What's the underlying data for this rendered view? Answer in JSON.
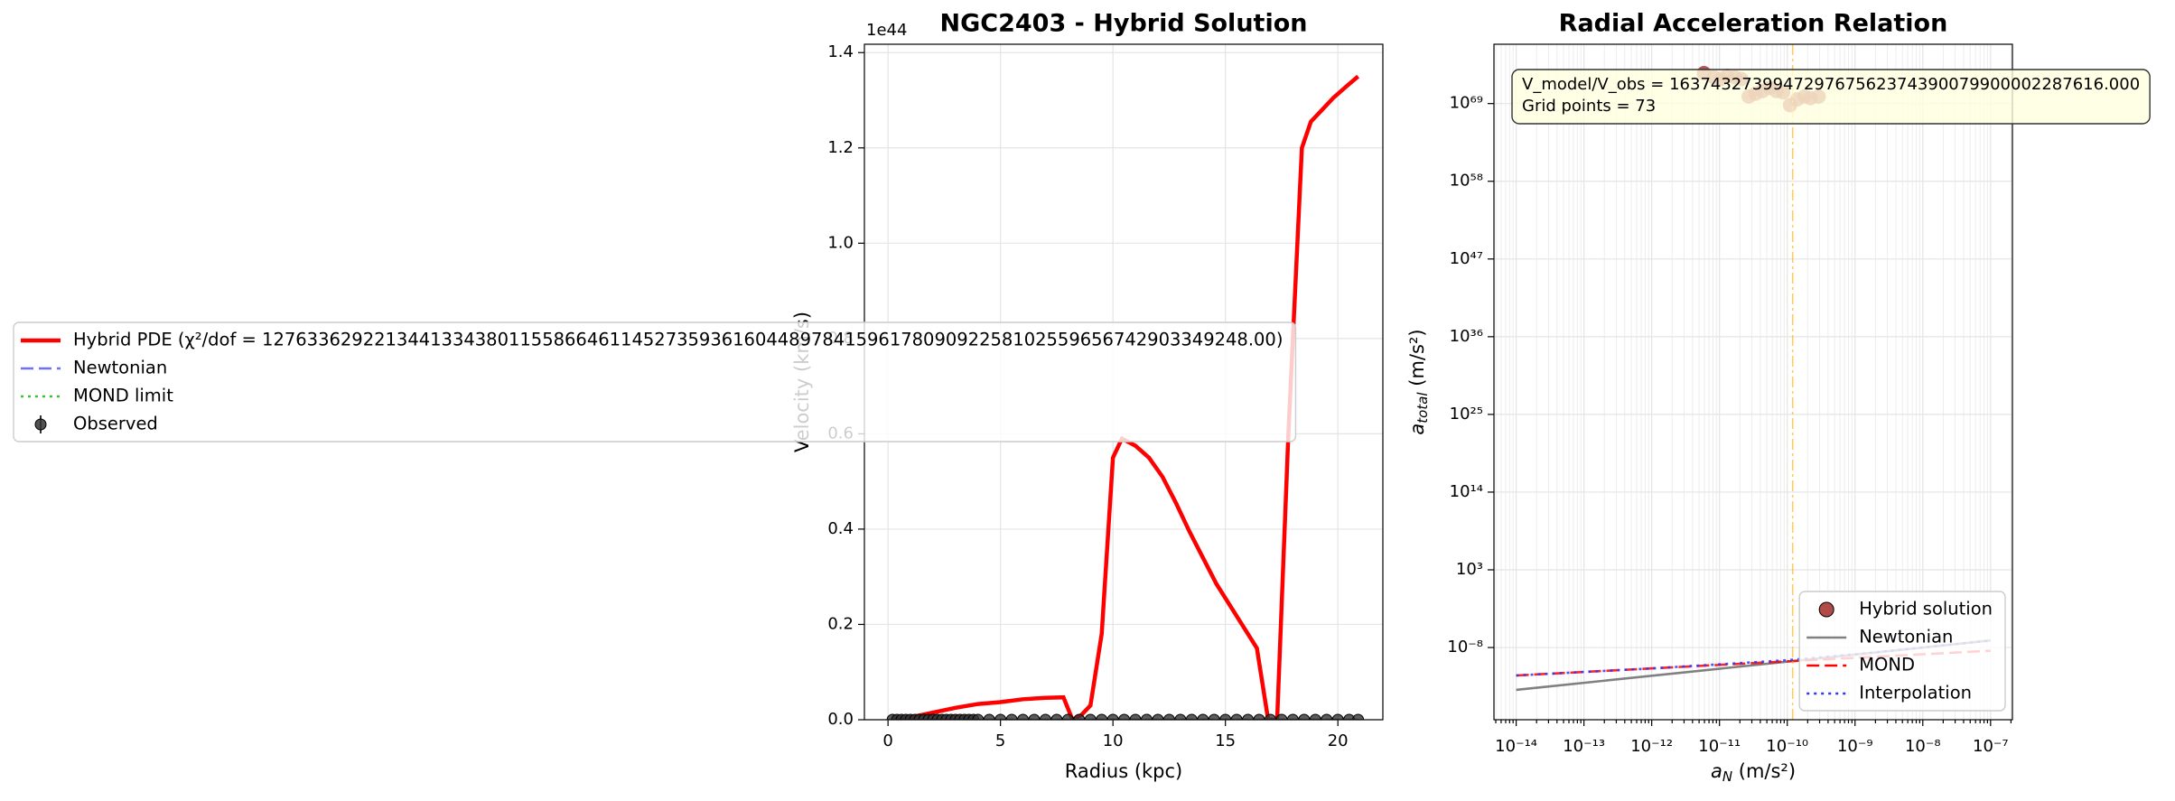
{
  "chart_data": [
    {
      "type": "line",
      "title": "NGC2403 - Hybrid Solution",
      "x_label": "Radius (kpc)",
      "y_label": "Velocity (km/s)",
      "y_offset_label": "1e44",
      "xlim": [
        -1.05,
        22.0
      ],
      "xticks": [
        0,
        5,
        10,
        15,
        20
      ],
      "ylim": [
        0,
        1.4175
      ],
      "yticks": [
        {
          "value": 0,
          "label": "0.0"
        },
        0.2,
        0.4,
        0.6,
        0.8,
        {
          "value": 1,
          "label": "1.0"
        },
        1.2,
        1.4
      ],
      "grid": true,
      "legend": "center left",
      "series": [
        {
          "name": "Hybrid PDE (χ²/dof = 1276336292213441334380115586646114527359361604489784159617809092258102559656742903349248.00)",
          "color": "#ff0000",
          "style": "solid",
          "x": [
            0.2,
            1,
            2,
            3,
            4,
            5,
            6,
            7,
            7.8,
            8.2,
            8.6,
            9.0,
            9.5,
            10.0,
            10.4,
            11.0,
            11.6,
            12.2,
            12.8,
            13.4,
            14.0,
            14.6,
            15.2,
            15.8,
            16.4,
            16.9,
            17.3,
            17.8,
            18.4,
            18.8,
            19.3,
            19.8,
            20.4,
            20.9
          ],
          "values": [
            0.0,
            0.005,
            0.015,
            0.025,
            0.033,
            0.037,
            0.043,
            0.046,
            0.047,
            0.0,
            0.01,
            0.03,
            0.18,
            0.55,
            0.59,
            0.575,
            0.55,
            0.51,
            0.455,
            0.395,
            0.34,
            0.285,
            0.24,
            0.195,
            0.15,
            0.0,
            0.0,
            0.6,
            1.2,
            1.255,
            1.28,
            1.305,
            1.33,
            1.35
          ]
        },
        {
          "name": "Newtonian",
          "color": "#6f6fff",
          "style": "dashed",
          "x": [
            0.2,
            20.9
          ],
          "values": [
            0,
            0
          ]
        },
        {
          "name": "MOND limit",
          "color": "#3fbf3f",
          "style": "dotted",
          "x": [
            0.2,
            20.9
          ],
          "values": [
            0,
            0
          ]
        },
        {
          "name": "Observed",
          "color": "#333333",
          "style": "marker",
          "x": [
            0.2,
            0.4,
            0.6,
            0.8,
            1.0,
            1.2,
            1.4,
            1.6,
            1.8,
            2.0,
            2.2,
            2.4,
            2.6,
            2.8,
            3.0,
            3.2,
            3.4,
            3.6,
            3.8,
            4.0,
            4.5,
            5.0,
            5.5,
            6.0,
            6.5,
            7.0,
            7.5,
            8.0,
            8.5,
            9.0,
            9.5,
            10.0,
            10.5,
            11.0,
            11.5,
            12.0,
            12.5,
            13.0,
            13.5,
            14.0,
            14.5,
            15.0,
            15.5,
            16.0,
            16.5,
            17.0,
            17.5,
            18.0,
            18.5,
            19.0,
            19.5,
            20.0,
            20.5,
            20.9
          ],
          "values": [
            0,
            0,
            0,
            0,
            0,
            0,
            0,
            0,
            0,
            0,
            0,
            0,
            0,
            0,
            0,
            0,
            0,
            0,
            0,
            0,
            0,
            0,
            0,
            0,
            0,
            0,
            0,
            0,
            0,
            0,
            0,
            0,
            0,
            0,
            0,
            0,
            0,
            0,
            0,
            0,
            0,
            0,
            0,
            0,
            0,
            0,
            0,
            0,
            0,
            0,
            0,
            0,
            0,
            0
          ]
        }
      ]
    },
    {
      "type": "scatter",
      "title": "Radial Acceleration Relation",
      "x_label": {
        "symbol": "a",
        "subscript": "N",
        "unit": " (m/s²)"
      },
      "y_label": {
        "symbol": "a",
        "subscript": "total",
        "unit": " (m/s²)"
      },
      "xscale": "log",
      "yscale": "log",
      "grid": true,
      "minor_grid": true,
      "xlim": [
        4.7e-15,
        2.1e-07
      ],
      "xticks": [
        {
          "value": 1e-14,
          "label": "10⁻¹⁴"
        },
        {
          "value": 1e-13,
          "label": "10⁻¹³"
        },
        {
          "value": 1e-12,
          "label": "10⁻¹²"
        },
        {
          "value": 1e-11,
          "label": "10⁻¹¹"
        },
        {
          "value": 1e-10,
          "label": "10⁻¹⁰"
        },
        {
          "value": 1e-09,
          "label": "10⁻⁹"
        },
        {
          "value": 1e-08,
          "label": "10⁻⁸"
        },
        {
          "value": 1e-07,
          "label": "10⁻⁷"
        }
      ],
      "ylim": [
        6e-19,
        2.5e+77
      ],
      "yticks": [
        {
          "value": 1e-08,
          "label": "10⁻⁸"
        },
        {
          "value": 1000.0,
          "label": "10³"
        },
        {
          "value": 100000000000000.0,
          "label": "10¹⁴"
        },
        {
          "value": 1e+25,
          "label": "10²⁵"
        },
        {
          "value": 1e+36,
          "label": "10³⁶"
        },
        {
          "value": 1e+47,
          "label": "10⁴⁷"
        },
        {
          "value": 1e+58,
          "label": "10⁵⁸"
        },
        {
          "value": 1e+69,
          "label": "10⁶⁹"
        }
      ],
      "reference_x": 1.2e-10,
      "reference_color": "#ffa500",
      "legend": "lower right",
      "text_box": [
        "V_model/V_obs = 163743273994729767562374390079900002287616.000",
        "Grid points = 73"
      ],
      "series": [
        {
          "name": "Hybrid solution",
          "color": "#a52a2a",
          "style": "marker",
          "x": [
            5.9e-12,
            8.3e-12,
            1.05e-11,
            1.3e-11,
            1.7e-11,
            2.1e-11,
            2.7e-11,
            3.4e-11,
            4.3e-11,
            5.5e-11,
            6.9e-11,
            8.7e-11,
            1.1e-10,
            1.4e-10,
            1.8e-10,
            2.2e-10,
            2.9e-10
          ],
          "values": [
            2e+73,
            5e+72,
            3e+72,
            8e+72,
            5e+72,
            3e+72,
            1e+70,
            2.5e+70,
            6e+70,
            1.6e+71,
            6e+70,
            4e+70,
            6e+68,
            4e+69,
            1e+70,
            6e+69,
            1e+70
          ]
        },
        {
          "name": "Newtonian",
          "color": "#808080",
          "style": "solid",
          "x": [
            1e-14,
            1e-07
          ],
          "values": [
            1e-14,
            1e-07
          ]
        },
        {
          "name": "MOND",
          "color": "#ff0000",
          "style": "dashed",
          "x": [
            1e-14,
            1e-07
          ],
          "values": [
            1.1e-12,
            3.5e-09
          ]
        },
        {
          "name": "Interpolation",
          "color": "#3333ff",
          "style": "dotted",
          "x": [
            1e-14,
            1e-12,
            1e-10,
            1e-09,
            1e-08,
            1e-07
          ],
          "values": [
            1.1e-12,
            1.1e-11,
            1.6e-10,
            1.1e-09,
            1e-08,
            1e-07
          ]
        }
      ]
    }
  ]
}
